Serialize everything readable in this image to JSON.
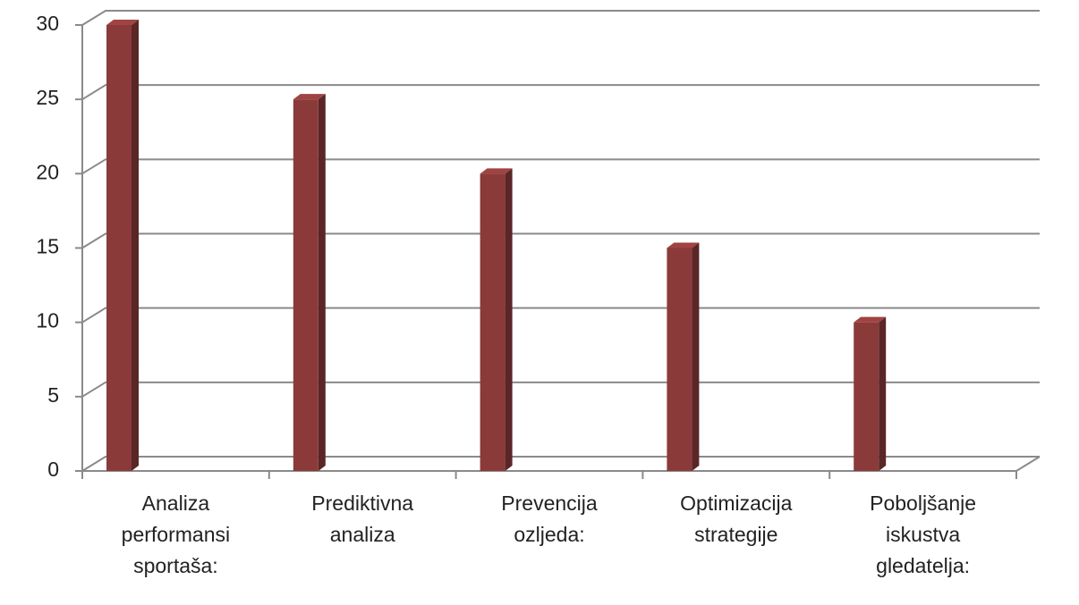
{
  "chart_data": {
    "type": "bar3d",
    "categories": [
      "Analiza performansi sportaša:",
      "Prediktivna analiza",
      "Prevencija ozljeda:",
      "Optimizacija strategije",
      "Poboljšanje iskustva gledatelja:"
    ],
    "values": [
      30,
      25,
      20,
      15,
      10
    ],
    "color": "#8b3a3a",
    "ylim": [
      0,
      30
    ],
    "yticks": [
      0,
      5,
      10,
      15,
      20,
      25,
      30
    ],
    "grid": true
  }
}
